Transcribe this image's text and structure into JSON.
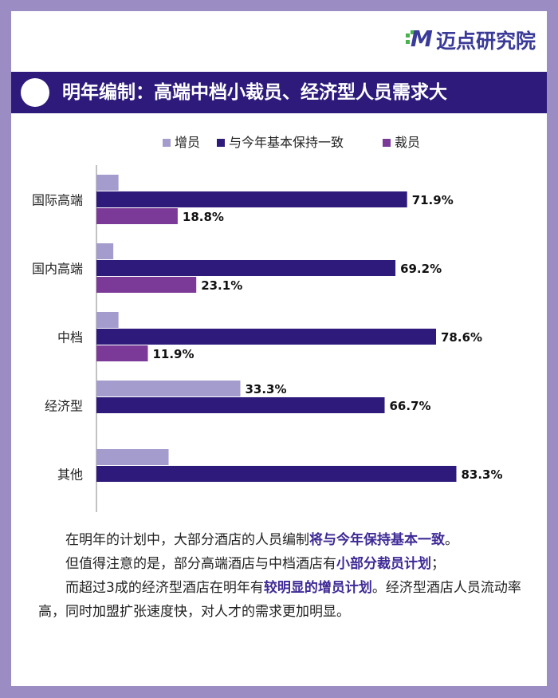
{
  "brand": {
    "logo_text": "迈点研究院",
    "logo_mark": "M"
  },
  "header": {
    "title": "明年编制：高端中档小裁员、经济型人员需求大"
  },
  "colors": {
    "increase": "#a59cce",
    "same": "#2e1a7a",
    "decrease": "#7b3a98",
    "accent": "#3f2a96"
  },
  "chart_data": {
    "type": "bar",
    "orientation": "horizontal",
    "categories": [
      "国际高端",
      "国内高端",
      "中档",
      "经济型",
      "其他"
    ],
    "series": [
      {
        "name": "增员",
        "values": [
          5.1,
          3.9,
          5.1,
          33.3,
          16.7
        ],
        "labels": [
          "",
          "",
          "",
          "33.3%",
          ""
        ]
      },
      {
        "name": "与今年基本保持一致",
        "values": [
          71.9,
          69.2,
          78.6,
          66.7,
          83.3
        ],
        "labels": [
          "71.9%",
          "69.2%",
          "78.6%",
          "66.7%",
          "83.3%"
        ]
      },
      {
        "name": "裁员",
        "values": [
          18.8,
          23.1,
          11.9,
          0,
          0
        ],
        "labels": [
          "18.8%",
          "23.1%",
          "11.9%",
          "",
          ""
        ]
      }
    ],
    "xlim": [
      0,
      100
    ],
    "grid": false,
    "legend": "top"
  },
  "text": {
    "p1_a": "在明年的计划中，大部分酒店的人员编制",
    "p1_b": "将与今年保持基本一致",
    "p1_c": "。",
    "p2_a": "但值得注意的是，部分高端酒店与中档酒店有",
    "p2_b": "小部分裁员计划",
    "p2_c": "；",
    "p3_a": "而超过3成的经济型酒店在明年有",
    "p3_b": "较明显的增员计划",
    "p3_c": "。经济型酒店人员流动率高，同时加盟扩张速度快，对人才的需求更加明显。"
  }
}
